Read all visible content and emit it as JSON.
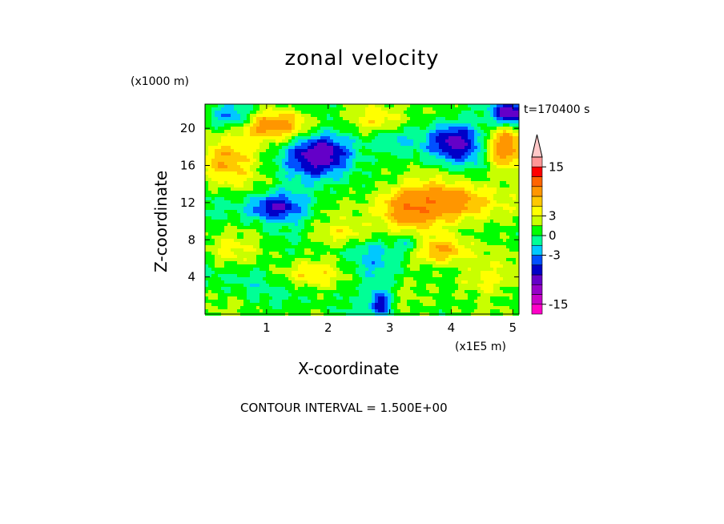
{
  "chart_data": {
    "type": "heatmap",
    "title": "zonal velocity",
    "xlabel": "X-coordinate",
    "ylabel": "Z-coordinate",
    "x_unit": "(x1E5 m)",
    "y_unit": "(x1000 m)",
    "annotation_time": "t=170400 s",
    "contour_interval_text": "CONTOUR INTERVAL = 1.500E+00",
    "xlim": [
      0,
      5.1
    ],
    "ylim": [
      0,
      22.6
    ],
    "x_ticks": [
      1,
      2,
      3,
      4,
      5
    ],
    "y_ticks": [
      4,
      8,
      12,
      16,
      20
    ],
    "colorbar": {
      "tick_labels": [
        "15",
        "3",
        "0",
        "-3",
        "-15"
      ],
      "levels": [
        -18,
        -15,
        -12,
        -9,
        -6,
        -4.5,
        -3,
        -1.5,
        0,
        1.5,
        3,
        4.5,
        6,
        9,
        12,
        15,
        18
      ],
      "colors": [
        "#ff00c8",
        "#c800c8",
        "#9600c8",
        "#6400c8",
        "#0000c8",
        "#0050ff",
        "#00c8ff",
        "#00ff96",
        "#00ff00",
        "#c8ff00",
        "#ffff00",
        "#ffc800",
        "#ff9600",
        "#ff6400",
        "#ff0000",
        "#ff9696",
        "#ffc8c8"
      ]
    },
    "features": [
      {
        "kind": "blob",
        "x": 1.9,
        "z": 17.2,
        "rx": 0.55,
        "rz": 2.2,
        "value": -9
      },
      {
        "kind": "blob",
        "x": 1.15,
        "z": 11.6,
        "rx": 0.5,
        "rz": 1.6,
        "value": -7
      },
      {
        "kind": "blob",
        "x": 4.05,
        "z": 18.6,
        "rx": 0.45,
        "rz": 2.2,
        "value": -8
      },
      {
        "kind": "blob",
        "x": 0.45,
        "z": 21.2,
        "rx": 0.35,
        "rz": 1.3,
        "value": -5
      },
      {
        "kind": "blob",
        "x": 4.95,
        "z": 21.6,
        "rx": 0.25,
        "rz": 1.2,
        "value": -9
      },
      {
        "kind": "blob",
        "x": 3.3,
        "z": 11.6,
        "rx": 0.55,
        "rz": 2.2,
        "value": 8
      },
      {
        "kind": "blob",
        "x": 4.15,
        "z": 11.8,
        "rx": 0.55,
        "rz": 2.2,
        "value": 6
      },
      {
        "kind": "blob",
        "x": 0.35,
        "z": 16.8,
        "rx": 0.45,
        "rz": 2.5,
        "value": 6
      },
      {
        "kind": "blob",
        "x": 4.85,
        "z": 17.8,
        "rx": 0.3,
        "rz": 2.4,
        "value": 7
      },
      {
        "kind": "blob",
        "x": 1.2,
        "z": 20.4,
        "rx": 0.65,
        "rz": 1.6,
        "value": 6
      },
      {
        "kind": "blob",
        "x": 2.85,
        "z": 20.6,
        "rx": 0.45,
        "rz": 1.6,
        "value": 4
      },
      {
        "kind": "blob",
        "x": 3.85,
        "z": 6.8,
        "rx": 0.5,
        "rz": 1.5,
        "value": 5
      },
      {
        "kind": "blob",
        "x": 2.3,
        "z": 8.6,
        "rx": 0.55,
        "rz": 1.2,
        "value": 3
      },
      {
        "kind": "blob",
        "x": 1.6,
        "z": 4.2,
        "rx": 0.6,
        "rz": 1.3,
        "value": 3
      },
      {
        "kind": "blob",
        "x": 4.45,
        "z": 3.6,
        "rx": 0.55,
        "rz": 1.6,
        "value": 3
      },
      {
        "kind": "blob",
        "x": 0.35,
        "z": 6.6,
        "rx": 0.45,
        "rz": 1.6,
        "value": 2
      },
      {
        "kind": "blob",
        "x": 0.7,
        "z": 3.6,
        "rx": 0.6,
        "rz": 2.0,
        "value": -1.5
      },
      {
        "kind": "blob",
        "x": 2.75,
        "z": 5.6,
        "rx": 0.45,
        "rz": 3.4,
        "value": -2
      },
      {
        "kind": "blob",
        "x": 3.0,
        "z": 19.2,
        "rx": 0.35,
        "rz": 1.6,
        "value": -2
      },
      {
        "kind": "blob",
        "x": 3.35,
        "z": 7.6,
        "rx": 0.25,
        "rz": 1.1,
        "value": -3.5
      },
      {
        "kind": "blob",
        "x": 0.9,
        "z": 9.6,
        "rx": 0.75,
        "rz": 1.1,
        "value": 0.5
      },
      {
        "kind": "blob",
        "x": 2.85,
        "z": 1.2,
        "rx": 0.15,
        "rz": 1.5,
        "value": -6
      }
    ]
  }
}
